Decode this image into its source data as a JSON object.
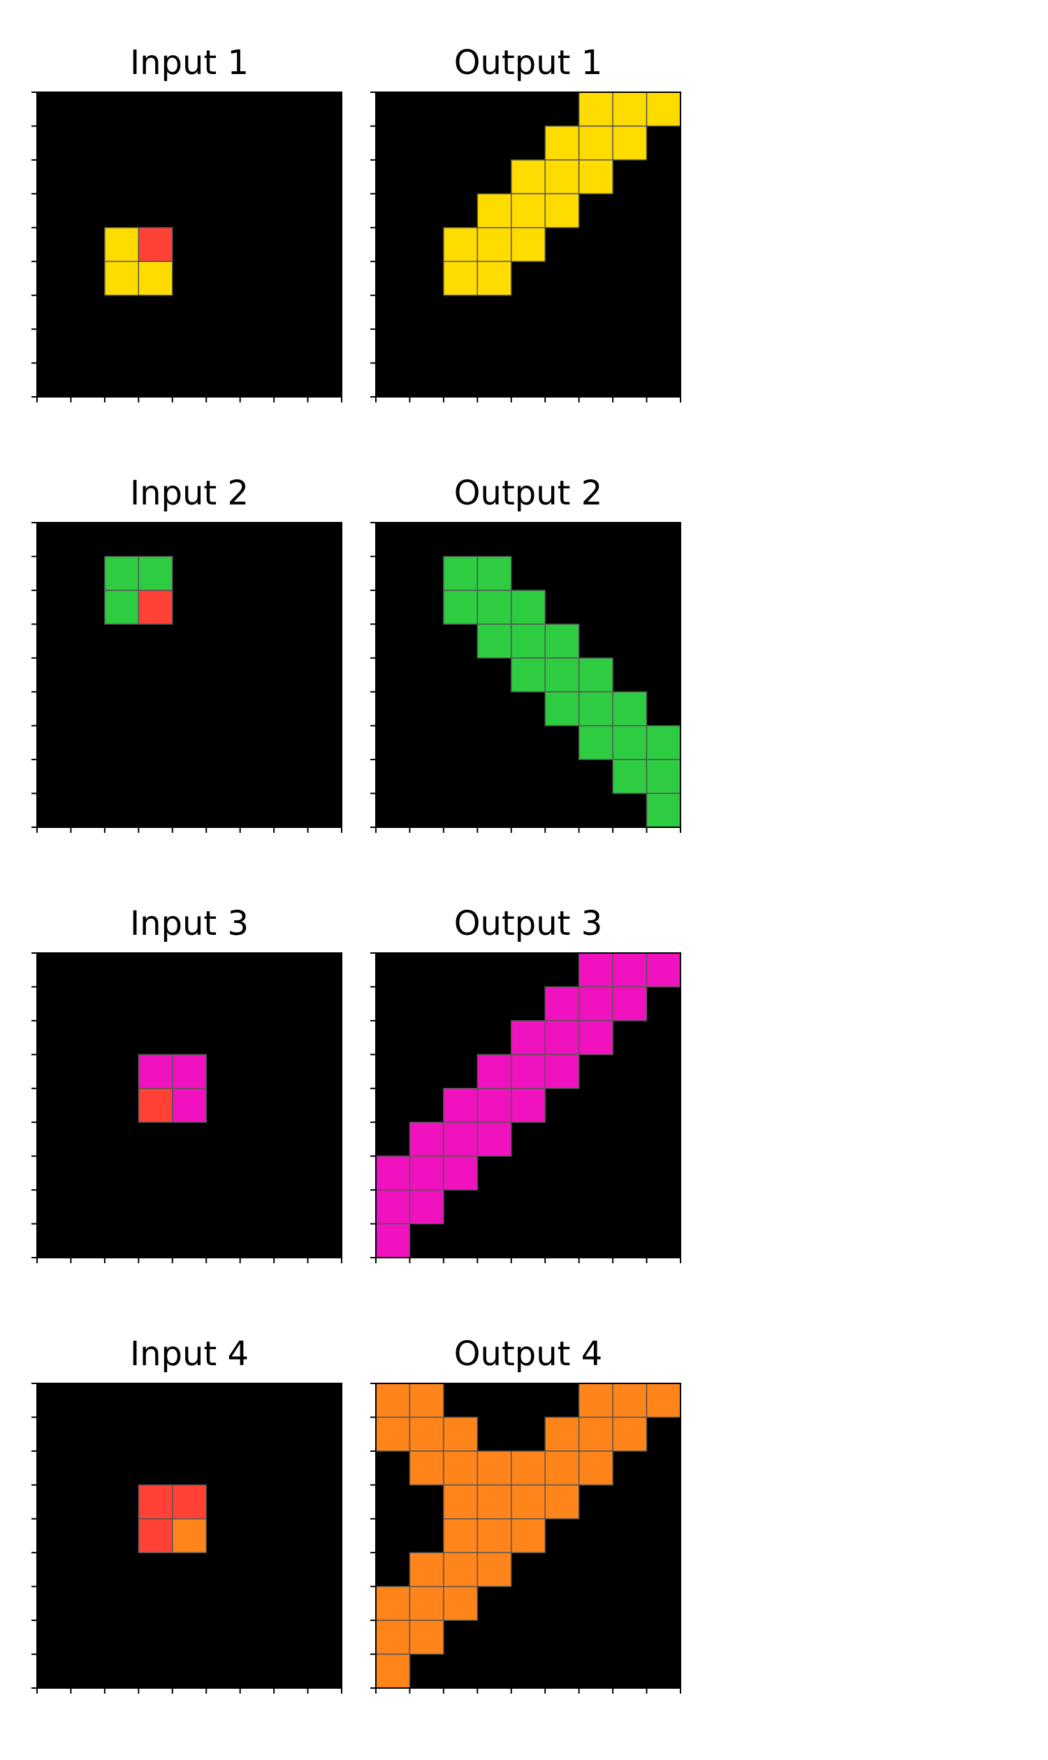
{
  "palette": {
    "0": "#000000",
    "1": "#FFDC00",
    "2": "#FF4136",
    "3": "#2ECC40",
    "4": "#F012BE",
    "5": "#FF851B"
  },
  "grid_line_color": "#555555",
  "pairs": [
    {
      "input": {
        "title": "Input 1",
        "grid": [
          [
            0,
            0,
            0,
            0,
            0,
            0,
            0,
            0,
            0
          ],
          [
            0,
            0,
            0,
            0,
            0,
            0,
            0,
            0,
            0
          ],
          [
            0,
            0,
            0,
            0,
            0,
            0,
            0,
            0,
            0
          ],
          [
            0,
            0,
            0,
            0,
            0,
            0,
            0,
            0,
            0
          ],
          [
            0,
            0,
            1,
            2,
            0,
            0,
            0,
            0,
            0
          ],
          [
            0,
            0,
            1,
            1,
            0,
            0,
            0,
            0,
            0
          ],
          [
            0,
            0,
            0,
            0,
            0,
            0,
            0,
            0,
            0
          ],
          [
            0,
            0,
            0,
            0,
            0,
            0,
            0,
            0,
            0
          ],
          [
            0,
            0,
            0,
            0,
            0,
            0,
            0,
            0,
            0
          ]
        ]
      },
      "output": {
        "title": "Output 1",
        "grid": [
          [
            0,
            0,
            0,
            0,
            0,
            0,
            1,
            1,
            1
          ],
          [
            0,
            0,
            0,
            0,
            0,
            1,
            1,
            1,
            0
          ],
          [
            0,
            0,
            0,
            0,
            1,
            1,
            1,
            0,
            0
          ],
          [
            0,
            0,
            0,
            1,
            1,
            1,
            0,
            0,
            0
          ],
          [
            0,
            0,
            1,
            1,
            1,
            0,
            0,
            0,
            0
          ],
          [
            0,
            0,
            1,
            1,
            0,
            0,
            0,
            0,
            0
          ],
          [
            0,
            0,
            0,
            0,
            0,
            0,
            0,
            0,
            0
          ],
          [
            0,
            0,
            0,
            0,
            0,
            0,
            0,
            0,
            0
          ],
          [
            0,
            0,
            0,
            0,
            0,
            0,
            0,
            0,
            0
          ]
        ]
      }
    },
    {
      "input": {
        "title": "Input 2",
        "grid": [
          [
            0,
            0,
            0,
            0,
            0,
            0,
            0,
            0,
            0
          ],
          [
            0,
            0,
            3,
            3,
            0,
            0,
            0,
            0,
            0
          ],
          [
            0,
            0,
            3,
            2,
            0,
            0,
            0,
            0,
            0
          ],
          [
            0,
            0,
            0,
            0,
            0,
            0,
            0,
            0,
            0
          ],
          [
            0,
            0,
            0,
            0,
            0,
            0,
            0,
            0,
            0
          ],
          [
            0,
            0,
            0,
            0,
            0,
            0,
            0,
            0,
            0
          ],
          [
            0,
            0,
            0,
            0,
            0,
            0,
            0,
            0,
            0
          ],
          [
            0,
            0,
            0,
            0,
            0,
            0,
            0,
            0,
            0
          ],
          [
            0,
            0,
            0,
            0,
            0,
            0,
            0,
            0,
            0
          ]
        ]
      },
      "output": {
        "title": "Output 2",
        "grid": [
          [
            0,
            0,
            0,
            0,
            0,
            0,
            0,
            0,
            0
          ],
          [
            0,
            0,
            3,
            3,
            0,
            0,
            0,
            0,
            0
          ],
          [
            0,
            0,
            3,
            3,
            3,
            0,
            0,
            0,
            0
          ],
          [
            0,
            0,
            0,
            3,
            3,
            3,
            0,
            0,
            0
          ],
          [
            0,
            0,
            0,
            0,
            3,
            3,
            3,
            0,
            0
          ],
          [
            0,
            0,
            0,
            0,
            0,
            3,
            3,
            3,
            0
          ],
          [
            0,
            0,
            0,
            0,
            0,
            0,
            3,
            3,
            3
          ],
          [
            0,
            0,
            0,
            0,
            0,
            0,
            0,
            3,
            3
          ],
          [
            0,
            0,
            0,
            0,
            0,
            0,
            0,
            0,
            3
          ]
        ]
      }
    },
    {
      "input": {
        "title": "Input 3",
        "grid": [
          [
            0,
            0,
            0,
            0,
            0,
            0,
            0,
            0,
            0
          ],
          [
            0,
            0,
            0,
            0,
            0,
            0,
            0,
            0,
            0
          ],
          [
            0,
            0,
            0,
            0,
            0,
            0,
            0,
            0,
            0
          ],
          [
            0,
            0,
            0,
            4,
            4,
            0,
            0,
            0,
            0
          ],
          [
            0,
            0,
            0,
            2,
            4,
            0,
            0,
            0,
            0
          ],
          [
            0,
            0,
            0,
            0,
            0,
            0,
            0,
            0,
            0
          ],
          [
            0,
            0,
            0,
            0,
            0,
            0,
            0,
            0,
            0
          ],
          [
            0,
            0,
            0,
            0,
            0,
            0,
            0,
            0,
            0
          ],
          [
            0,
            0,
            0,
            0,
            0,
            0,
            0,
            0,
            0
          ]
        ]
      },
      "output": {
        "title": "Output 3",
        "grid": [
          [
            0,
            0,
            0,
            0,
            0,
            0,
            4,
            4,
            4
          ],
          [
            0,
            0,
            0,
            0,
            0,
            4,
            4,
            4,
            0
          ],
          [
            0,
            0,
            0,
            0,
            4,
            4,
            4,
            0,
            0
          ],
          [
            0,
            0,
            0,
            4,
            4,
            4,
            0,
            0,
            0
          ],
          [
            0,
            0,
            4,
            4,
            4,
            0,
            0,
            0,
            0
          ],
          [
            0,
            4,
            4,
            4,
            0,
            0,
            0,
            0,
            0
          ],
          [
            4,
            4,
            4,
            0,
            0,
            0,
            0,
            0,
            0
          ],
          [
            4,
            4,
            0,
            0,
            0,
            0,
            0,
            0,
            0
          ],
          [
            4,
            0,
            0,
            0,
            0,
            0,
            0,
            0,
            0
          ]
        ]
      }
    },
    {
      "input": {
        "title": "Input 4",
        "grid": [
          [
            0,
            0,
            0,
            0,
            0,
            0,
            0,
            0,
            0
          ],
          [
            0,
            0,
            0,
            0,
            0,
            0,
            0,
            0,
            0
          ],
          [
            0,
            0,
            0,
            0,
            0,
            0,
            0,
            0,
            0
          ],
          [
            0,
            0,
            0,
            2,
            2,
            0,
            0,
            0,
            0
          ],
          [
            0,
            0,
            0,
            2,
            5,
            0,
            0,
            0,
            0
          ],
          [
            0,
            0,
            0,
            0,
            0,
            0,
            0,
            0,
            0
          ],
          [
            0,
            0,
            0,
            0,
            0,
            0,
            0,
            0,
            0
          ],
          [
            0,
            0,
            0,
            0,
            0,
            0,
            0,
            0,
            0
          ],
          [
            0,
            0,
            0,
            0,
            0,
            0,
            0,
            0,
            0
          ]
        ]
      },
      "output": {
        "title": "Output 4",
        "grid": [
          [
            5,
            5,
            0,
            0,
            0,
            0,
            5,
            5,
            5
          ],
          [
            5,
            5,
            5,
            0,
            0,
            5,
            5,
            5,
            0
          ],
          [
            0,
            5,
            5,
            5,
            5,
            5,
            5,
            0,
            0
          ],
          [
            0,
            0,
            5,
            5,
            5,
            5,
            0,
            0,
            0
          ],
          [
            0,
            0,
            5,
            5,
            5,
            0,
            0,
            0,
            0
          ],
          [
            0,
            5,
            5,
            5,
            0,
            0,
            0,
            0,
            0
          ],
          [
            5,
            5,
            5,
            0,
            0,
            0,
            0,
            0,
            0
          ],
          [
            5,
            5,
            0,
            0,
            0,
            0,
            0,
            0,
            0
          ],
          [
            5,
            0,
            0,
            0,
            0,
            0,
            0,
            0,
            0
          ]
        ]
      }
    }
  ]
}
